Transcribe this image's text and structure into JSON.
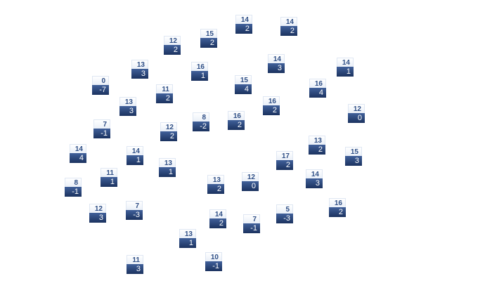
{
  "nodes": [
    {
      "top": "14",
      "bottom": "2"
    },
    {
      "top": "14",
      "bottom": "2"
    },
    {
      "top": "15",
      "bottom": "2"
    },
    {
      "top": "12",
      "bottom": "2"
    },
    {
      "top": "14",
      "bottom": "3"
    },
    {
      "top": "14",
      "bottom": "1"
    },
    {
      "top": "13",
      "bottom": "3"
    },
    {
      "top": "16",
      "bottom": "1"
    },
    {
      "top": "15",
      "bottom": "4"
    },
    {
      "top": "16",
      "bottom": "4"
    },
    {
      "top": "0",
      "bottom": "-7"
    },
    {
      "top": "11",
      "bottom": "2"
    },
    {
      "top": "16",
      "bottom": "2"
    },
    {
      "top": "13",
      "bottom": "3"
    },
    {
      "top": "12",
      "bottom": "0"
    },
    {
      "top": "8",
      "bottom": "-2"
    },
    {
      "top": "16",
      "bottom": "2"
    },
    {
      "top": "7",
      "bottom": "-1"
    },
    {
      "top": "12",
      "bottom": "2"
    },
    {
      "top": "13",
      "bottom": "2"
    },
    {
      "top": "14",
      "bottom": "4"
    },
    {
      "top": "14",
      "bottom": "1"
    },
    {
      "top": "15",
      "bottom": "3"
    },
    {
      "top": "17",
      "bottom": "2"
    },
    {
      "top": "13",
      "bottom": "1"
    },
    {
      "top": "11",
      "bottom": "1"
    },
    {
      "top": "14",
      "bottom": "3"
    },
    {
      "top": "12",
      "bottom": "0"
    },
    {
      "top": "13",
      "bottom": "2"
    },
    {
      "top": "8",
      "bottom": "-1"
    },
    {
      "top": "16",
      "bottom": "2"
    },
    {
      "top": "7",
      "bottom": "-3"
    },
    {
      "top": "12",
      "bottom": "3"
    },
    {
      "top": "5",
      "bottom": "-3"
    },
    {
      "top": "14",
      "bottom": "2"
    },
    {
      "top": "7",
      "bottom": "-1"
    },
    {
      "top": "13",
      "bottom": "1"
    },
    {
      "top": "10",
      "bottom": "-1"
    },
    {
      "top": "11",
      "bottom": "3"
    }
  ]
}
